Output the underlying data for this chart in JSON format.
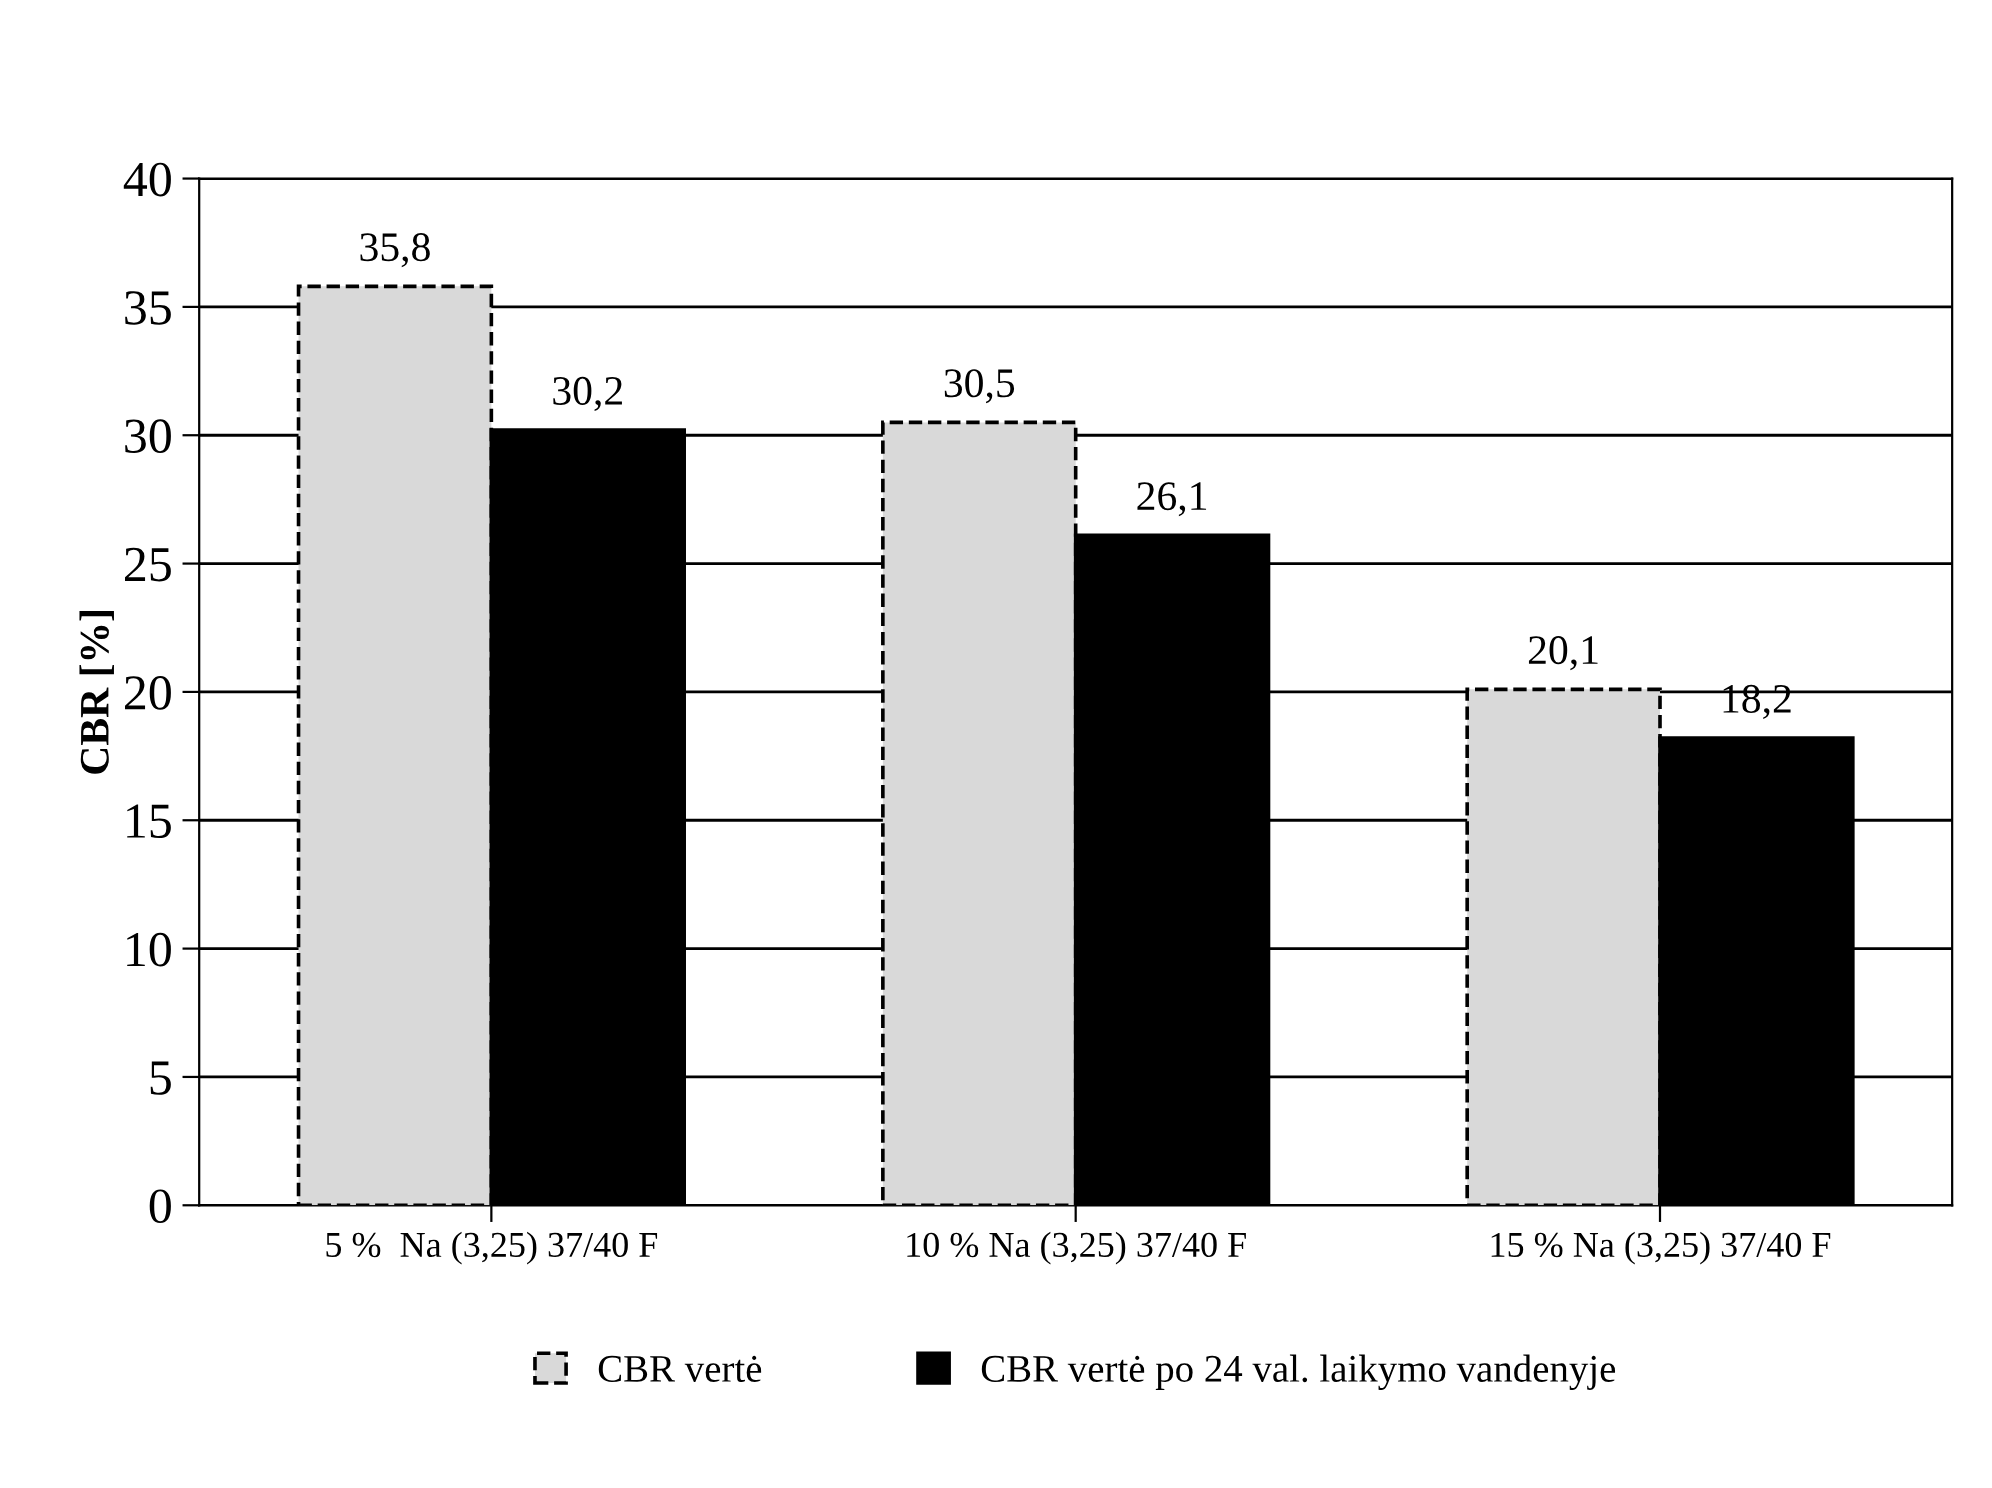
{
  "chart_data": {
    "type": "bar",
    "ylabel": "CBR [%]",
    "categories": [
      "5 %  Na (3,25) 37/40 F",
      "10 % Na (3,25) 37/40 F",
      "15 % Na (3,25) 37/40 F"
    ],
    "series": [
      {
        "name": "CBR vertė",
        "color": "#d9d9d9",
        "line_style": "dashed",
        "values": [
          35.8,
          30.5,
          20.1
        ],
        "value_labels": [
          "35,8",
          "30,5",
          "20,1"
        ]
      },
      {
        "name": "CBR vertė po 24 val. laikymo vandenyje",
        "color": "#000000",
        "line_style": "solid",
        "values": [
          30.2,
          26.1,
          18.2
        ],
        "value_labels": [
          "30,2",
          "26,1",
          "18,2"
        ]
      }
    ],
    "ylim": [
      0,
      40
    ],
    "yticks": [
      0,
      5,
      10,
      15,
      20,
      25,
      30,
      35,
      40
    ],
    "grid": "y",
    "legend": "bottom"
  }
}
